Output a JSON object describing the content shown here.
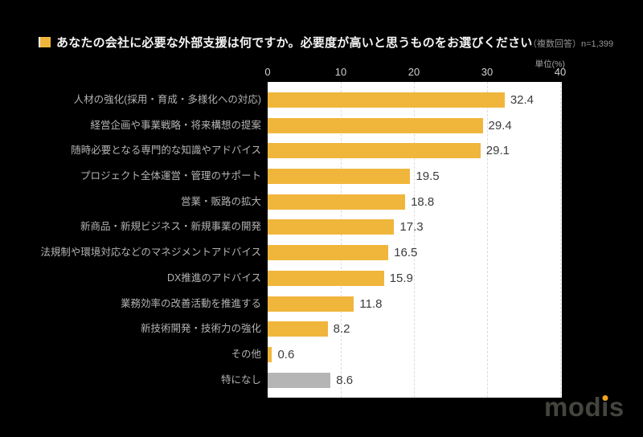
{
  "chart_data": {
    "type": "bar",
    "orientation": "horizontal",
    "title": "あなたの会社に必要な外部支援は何ですか。必要度が高いと思うものをお選びください",
    "note": "（複数回答）n=1,399",
    "unit_label": "単位(%)",
    "categories": [
      "人材の強化(採用・育成・多様化への対応)",
      "経営企画や事業戦略・将来構想の提案",
      "随時必要となる専門的な知識やアドバイス",
      "プロジェクト全体運営・管理のサポート",
      "営業・販路の拡大",
      "新商品・新規ビジネス・新規事業の開発",
      "法規制や環境対応などのマネジメントアドバイス",
      "DX推進のアドバイス",
      "業務効率の改善活動を推進する",
      "新技術開発・技術力の強化",
      "その他",
      "特になし"
    ],
    "values": [
      32.4,
      29.4,
      29.1,
      19.5,
      18.8,
      17.3,
      16.5,
      15.9,
      11.8,
      8.2,
      0.6,
      8.6
    ],
    "bar_colors": [
      "#F0B63C",
      "#F0B63C",
      "#F0B63C",
      "#F0B63C",
      "#F0B63C",
      "#F0B63C",
      "#F0B63C",
      "#F0B63C",
      "#F0B63C",
      "#F0B63C",
      "#F0B63C",
      "#B5B5B5"
    ],
    "accent_color": "#F0B63C",
    "na_bar_color": "#B5B5B5",
    "background_color": "#000000",
    "plot_background_color": "#FFFFFF",
    "xlabel": "",
    "ylabel": "",
    "xlim": [
      0,
      40
    ],
    "xticks": [
      0,
      10,
      20,
      30,
      40
    ],
    "grid": "dashed-vertical",
    "legend": "none",
    "value_label_position": "end-of-bar"
  },
  "logo": {
    "brand": "modis",
    "seg_m": "mod",
    "seg_i": "ı",
    "seg_s": "s",
    "dot_color": "#F0A41F",
    "text_color": "#45453F"
  }
}
